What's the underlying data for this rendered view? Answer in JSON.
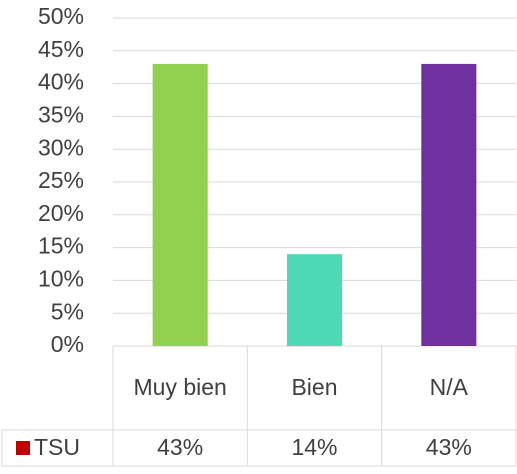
{
  "chart_data": {
    "type": "bar",
    "categories": [
      "Muy bien",
      "Bien",
      "N/A"
    ],
    "series": [
      {
        "name": "TSU",
        "color": "#c00000",
        "colors": [
          "#92d050",
          "#4dd9b3",
          "#7030a0"
        ],
        "values": [
          43,
          14,
          43
        ],
        "value_labels": [
          "43%",
          "14%",
          "43%"
        ]
      }
    ],
    "ylim": [
      0,
      50
    ],
    "yticks": [
      {
        "value": 0,
        "label": "0%"
      },
      {
        "value": 5,
        "label": "5%"
      },
      {
        "value": 10,
        "label": "10%"
      },
      {
        "value": 15,
        "label": "15%"
      },
      {
        "value": 20,
        "label": "20%"
      },
      {
        "value": 25,
        "label": "25%"
      },
      {
        "value": 30,
        "label": "30%"
      },
      {
        "value": 35,
        "label": "35%"
      },
      {
        "value": 40,
        "label": "40%"
      },
      {
        "value": 45,
        "label": "45%"
      },
      {
        "value": 50,
        "label": "50%"
      }
    ],
    "grid": true
  }
}
